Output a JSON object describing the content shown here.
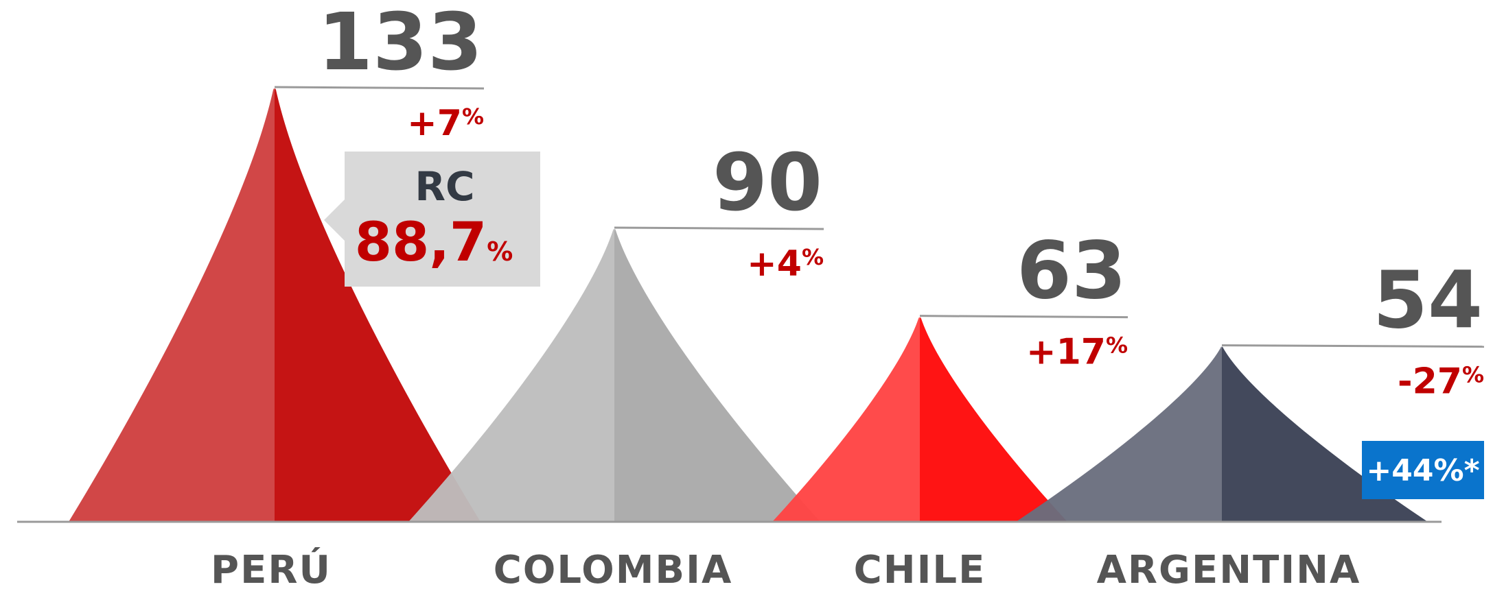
{
  "chart_data": {
    "type": "area",
    "title": "",
    "categories": [
      "PERÚ",
      "COLOMBIA",
      "CHILE",
      "ARGENTINA"
    ],
    "values": [
      133,
      90,
      63,
      54
    ],
    "value_labels": [
      "133",
      "90",
      "63",
      "54"
    ],
    "changes": [
      "+7%",
      "+4%",
      "+17%",
      "-27%"
    ],
    "ylim": [
      0,
      150
    ],
    "grid": false,
    "legend": "none",
    "colors": {
      "PERÚ": [
        "#cf3f3f",
        "#c00000"
      ],
      "COLOMBIA": [
        "#bdbdbd",
        "#a6a6a6"
      ],
      "CHILE": [
        "#ff4444",
        "#ff0000"
      ],
      "ARGENTINA": [
        "#6a6e7e",
        "#333a4e"
      ]
    },
    "annotations": {
      "rc_box": {
        "label": "RC",
        "value": "88,7",
        "unit": "%",
        "category": "PERÚ"
      },
      "badge": {
        "text": "+44%*",
        "category": "ARGENTINA",
        "color": "#0a74cc"
      }
    }
  }
}
